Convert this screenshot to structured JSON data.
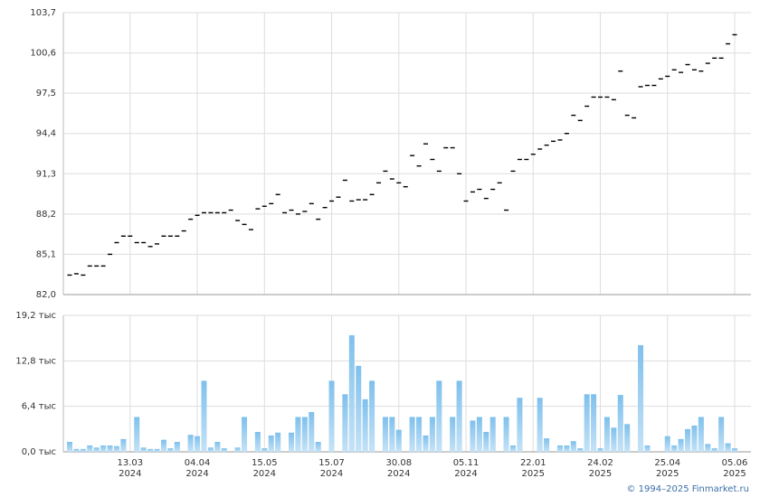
{
  "chart_data": [
    {
      "type": "dash",
      "color": "#000000",
      "ylim": [
        82.0,
        103.7
      ],
      "yticks": [
        {
          "value": 82.0,
          "label": "82,0"
        },
        {
          "value": 85.1,
          "label": "85,1"
        },
        {
          "value": 88.2,
          "label": "88,2"
        },
        {
          "value": 91.3,
          "label": "91,3"
        },
        {
          "value": 94.4,
          "label": "94,4"
        },
        {
          "value": 97.5,
          "label": "97,5"
        },
        {
          "value": 100.6,
          "label": "100,6"
        },
        {
          "value": 103.7,
          "label": "103,7"
        }
      ],
      "grid": true,
      "values": [
        83.5,
        83.6,
        83.5,
        84.2,
        84.2,
        84.2,
        85.1,
        86.0,
        86.5,
        86.5,
        86.0,
        86.0,
        85.7,
        85.9,
        86.5,
        86.5,
        86.5,
        86.9,
        87.8,
        88.1,
        88.3,
        88.3,
        88.3,
        88.3,
        88.5,
        87.7,
        87.4,
        87.0,
        88.6,
        88.8,
        89.0,
        89.7,
        88.3,
        88.5,
        88.2,
        88.4,
        89.0,
        87.8,
        88.7,
        89.2,
        89.5,
        90.8,
        89.2,
        89.3,
        89.3,
        89.7,
        90.6,
        91.5,
        90.9,
        90.6,
        90.3,
        92.7,
        91.9,
        93.6,
        92.4,
        91.5,
        93.3,
        93.3,
        91.3,
        89.2,
        89.9,
        90.1,
        89.4,
        90.1,
        90.6,
        88.5,
        91.5,
        92.4,
        92.4,
        92.8,
        93.2,
        93.5,
        93.8,
        93.9,
        94.4,
        95.8,
        95.4,
        96.5,
        97.2,
        97.2,
        97.2,
        97.0,
        99.2,
        95.8,
        95.6,
        98.0,
        98.1,
        98.1,
        98.6,
        98.8,
        99.3,
        99.1,
        99.7,
        99.3,
        99.2,
        99.8,
        100.2,
        100.2,
        101.3,
        102.0
      ]
    },
    {
      "type": "bar",
      "color": "#7fc0ec",
      "ylim": [
        0,
        19.2
      ],
      "yticks": [
        {
          "value": 0,
          "label": "0,0 тыс"
        },
        {
          "value": 6.4,
          "label": "6,4 тыс"
        },
        {
          "value": 12.8,
          "label": "12,8 тыс"
        },
        {
          "value": 19.2,
          "label": "19,2 тыс"
        }
      ],
      "grid": true,
      "categories": [
        null,
        null,
        null,
        null,
        null,
        null,
        null,
        null,
        null,
        "13.03\n2024",
        null,
        null,
        null,
        null,
        null,
        null,
        null,
        null,
        null,
        "04.04\n2024",
        null,
        null,
        null,
        null,
        null,
        null,
        null,
        null,
        null,
        "15.05\n2024",
        null,
        null,
        null,
        null,
        null,
        null,
        null,
        null,
        null,
        "15.07\n2024",
        null,
        null,
        null,
        null,
        null,
        null,
        null,
        null,
        null,
        "30.08\n2024",
        null,
        null,
        null,
        null,
        null,
        null,
        null,
        null,
        null,
        "05.11\n2024",
        null,
        null,
        null,
        null,
        null,
        null,
        null,
        null,
        null,
        "22.01\n2025",
        null,
        null,
        null,
        null,
        null,
        null,
        null,
        null,
        null,
        "24.02\n2025",
        null,
        null,
        null,
        null,
        null,
        null,
        null,
        null,
        null,
        "25.04\n2025",
        null,
        null,
        null,
        null,
        null,
        null,
        null,
        null,
        null,
        "05.06\n2025"
      ],
      "values": [
        1.4,
        0.4,
        0.4,
        0.9,
        0.6,
        0.9,
        0.9,
        0.8,
        1.8,
        0,
        4.9,
        0.6,
        0.4,
        0.4,
        1.7,
        0.5,
        1.4,
        0,
        2.4,
        2.2,
        10.0,
        0.6,
        1.4,
        0.5,
        0,
        0.6,
        4.9,
        0,
        2.8,
        0.5,
        2.3,
        2.7,
        0,
        2.7,
        4.9,
        4.9,
        5.6,
        1.4,
        0,
        10.0,
        0,
        8.1,
        16.4,
        12.1,
        7.4,
        10.0,
        0,
        4.9,
        4.9,
        3.1,
        0,
        4.9,
        4.9,
        2.3,
        4.9,
        10.0,
        0,
        4.9,
        10.0,
        0,
        4.4,
        4.9,
        2.8,
        4.9,
        0,
        4.9,
        0.9,
        7.6,
        0,
        0,
        7.6,
        1.9,
        0,
        0.9,
        0.9,
        1.5,
        0.5,
        8.1,
        8.1,
        0.5,
        4.9,
        3.4,
        8.0,
        3.9,
        0,
        15.0,
        0.9,
        0,
        0,
        2.2,
        0.9,
        1.8,
        3.2,
        3.7,
        4.9,
        1.1,
        0.5,
        4.9,
        1.2,
        0.5
      ]
    }
  ],
  "footer": "© 1994–2025 Finmarket.ru"
}
